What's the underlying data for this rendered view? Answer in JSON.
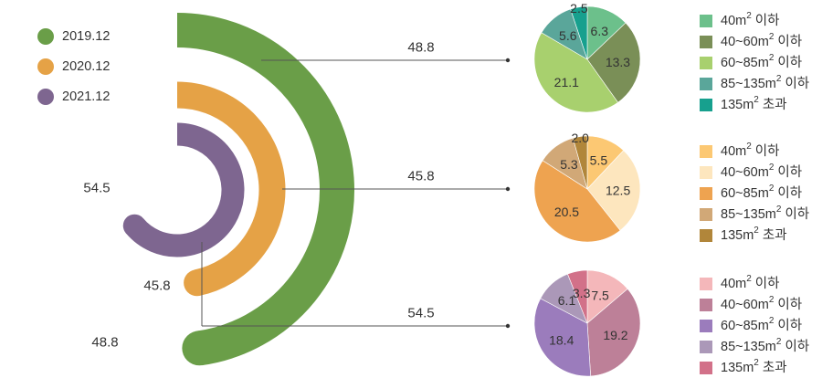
{
  "chart_data": {
    "type": "pie",
    "radial_bars": {
      "type": "radial-bar",
      "legend_position": "top-left",
      "series": [
        {
          "name": "2019.12",
          "value": 48.8,
          "color": "#6a9e48"
        },
        {
          "name": "2020.12",
          "value": 45.8,
          "color": "#e5a246"
        },
        {
          "name": "2021.12",
          "value": 54.5,
          "color": "#7e6690"
        }
      ]
    },
    "pies": [
      {
        "series": "2019.12",
        "connector_label": "48.8",
        "legend": [
          {
            "label": "40m² 이하",
            "color": "#6cc08b"
          },
          {
            "label": "40~60m² 이하",
            "color": "#7a8f57"
          },
          {
            "label": "60~85m² 이하",
            "color": "#a8d06e"
          },
          {
            "label": "85~135m² 이하",
            "color": "#5aa69a"
          },
          {
            "label": "135m² 초과",
            "color": "#17a08e"
          }
        ],
        "slices": [
          {
            "label": "6.3",
            "value": 6.3
          },
          {
            "label": "13.3",
            "value": 13.3
          },
          {
            "label": "21.1",
            "value": 21.1
          },
          {
            "label": "5.6",
            "value": 5.6
          },
          {
            "label": "2.5",
            "value": 2.5
          }
        ]
      },
      {
        "series": "2020.12",
        "connector_label": "45.8",
        "legend": [
          {
            "label": "40m² 이하",
            "color": "#fcc873"
          },
          {
            "label": "40~60m² 이하",
            "color": "#fde6be"
          },
          {
            "label": "60~85m² 이하",
            "color": "#eea350"
          },
          {
            "label": "85~135m² 이하",
            "color": "#d1a877"
          },
          {
            "label": "135m² 초과",
            "color": "#b1863a"
          }
        ],
        "slices": [
          {
            "label": "5.5",
            "value": 5.5
          },
          {
            "label": "12.5",
            "value": 12.5
          },
          {
            "label": "20.5",
            "value": 20.5
          },
          {
            "label": "5.3",
            "value": 5.3
          },
          {
            "label": "2.0",
            "value": 2.0
          }
        ]
      },
      {
        "series": "2021.12",
        "connector_label": "54.5",
        "legend": [
          {
            "label": "40m² 이하",
            "color": "#f4b7ba"
          },
          {
            "label": "40~60m² 이하",
            "color": "#bd8098"
          },
          {
            "label": "60~85m² 이하",
            "color": "#9b7cbc"
          },
          {
            "label": "85~135m² 이하",
            "color": "#ab98b8"
          },
          {
            "label": "135m² 초과",
            "color": "#d27189"
          }
        ],
        "slices": [
          {
            "label": "7.5",
            "value": 7.5
          },
          {
            "label": "19.2",
            "value": 19.2
          },
          {
            "label": "18.4",
            "value": 18.4
          },
          {
            "label": "6.1",
            "value": 6.1
          },
          {
            "label": "3.3",
            "value": 3.3
          }
        ]
      }
    ]
  }
}
